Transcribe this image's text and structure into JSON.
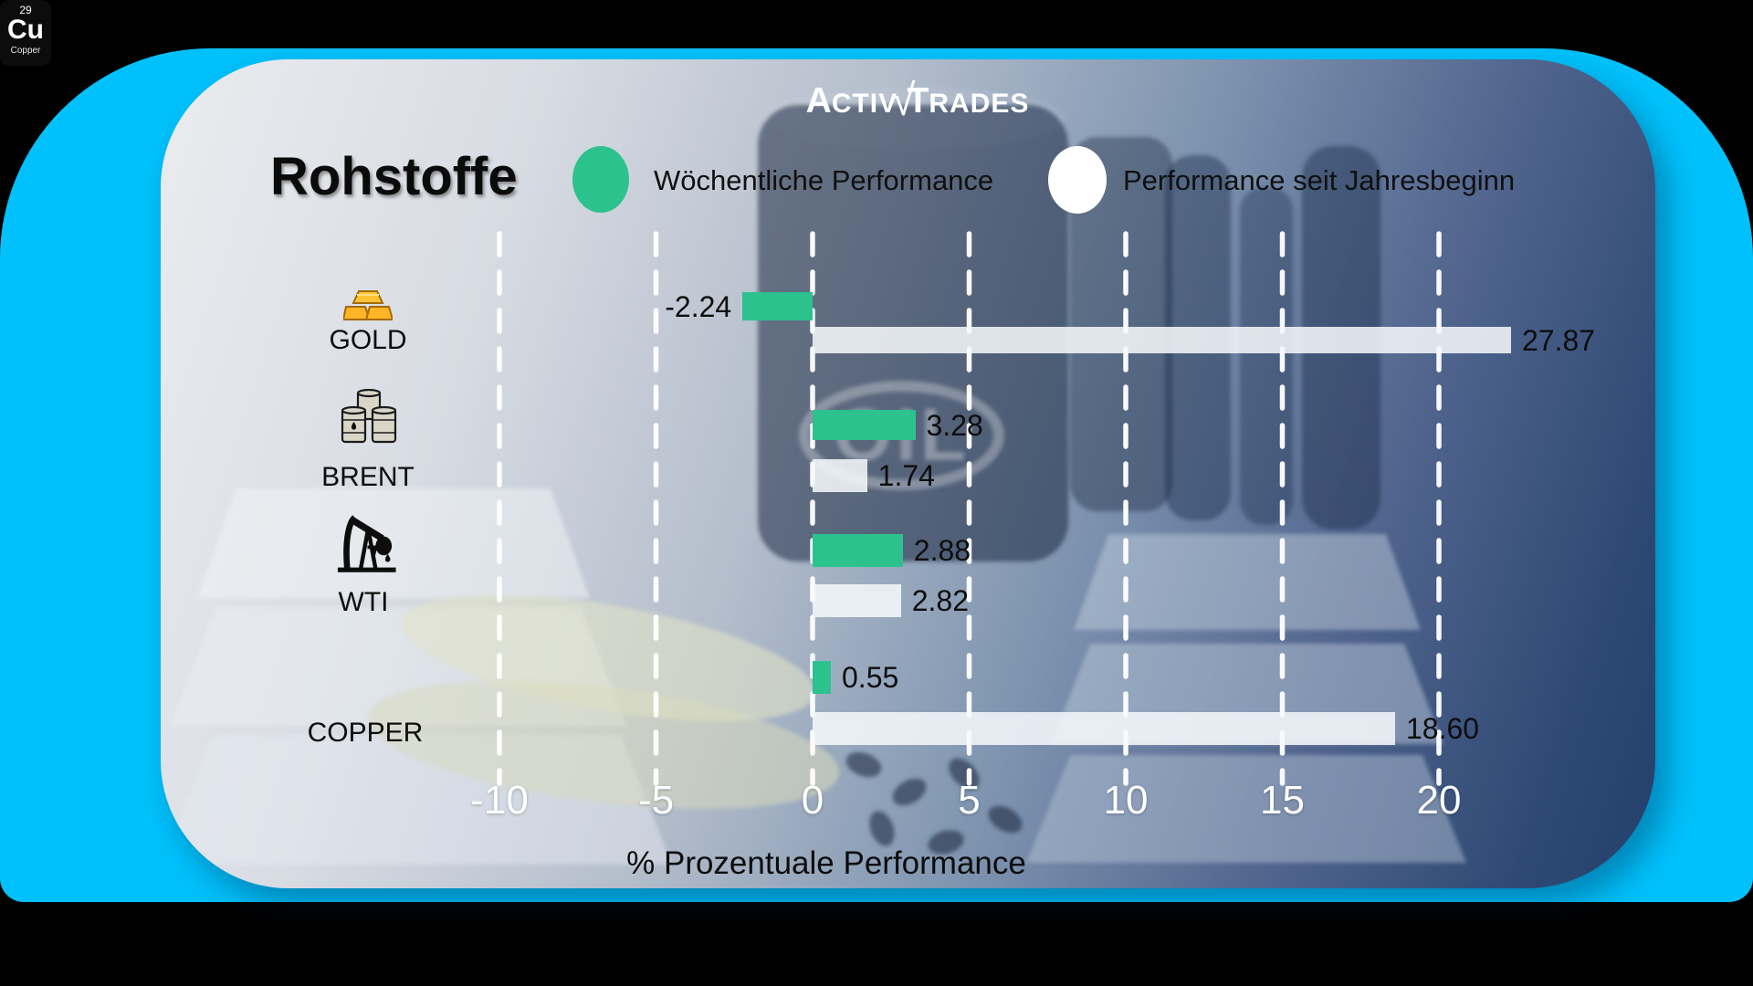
{
  "brand": {
    "logo": {
      "left_initial": "A",
      "left_rest": "CTIV",
      "symbol": "√",
      "right_initial": "T",
      "right_rest": "RADES"
    }
  },
  "header": {
    "title": "Rohstoffe"
  },
  "legend": [
    {
      "label": "Wöchentliche Performance",
      "color": "#2bc28e"
    },
    {
      "label": "Performance seit Jahresbeginn",
      "color": "#ffffff"
    }
  ],
  "colors": {
    "weekly_bar": "#2bc28e",
    "ytd_bar": "#f2f6f9",
    "frame": "#00c1fb",
    "axis_text": "#ffffff"
  },
  "chart_data": {
    "type": "bar",
    "orientation": "horizontal",
    "title": "Rohstoffe",
    "xlabel": "% Prozentuale Performance",
    "categories": [
      "GOLD",
      "BRENT",
      "WTI",
      "COPPER"
    ],
    "series": [
      {
        "name": "Wöchentliche Performance",
        "color": "#2bc28e",
        "values": [
          -2.24,
          3.28,
          2.88,
          0.55
        ]
      },
      {
        "name": "Performance seit Jahresbeginn",
        "color": "#ffffff",
        "values": [
          27.87,
          1.74,
          2.82,
          18.6
        ]
      }
    ],
    "value_labels": [
      [
        "-2.24",
        "3.28",
        "2.88",
        "0.55"
      ],
      [
        "27.87",
        "1.74",
        "2.82",
        "18.60"
      ]
    ],
    "x_ticks": [
      -10,
      -5,
      0,
      5,
      10,
      15,
      20
    ],
    "xlim": [
      -12.5,
      22.5
    ],
    "grid": "dashed-vertical"
  },
  "row_icons": [
    {
      "name": "gold-bars-icon"
    },
    {
      "name": "oil-barrels-icon"
    },
    {
      "name": "pumpjack-icon"
    },
    {
      "name": "copper-element-icon",
      "number": "29",
      "symbol": "Cu",
      "caption": "Copper"
    }
  ]
}
